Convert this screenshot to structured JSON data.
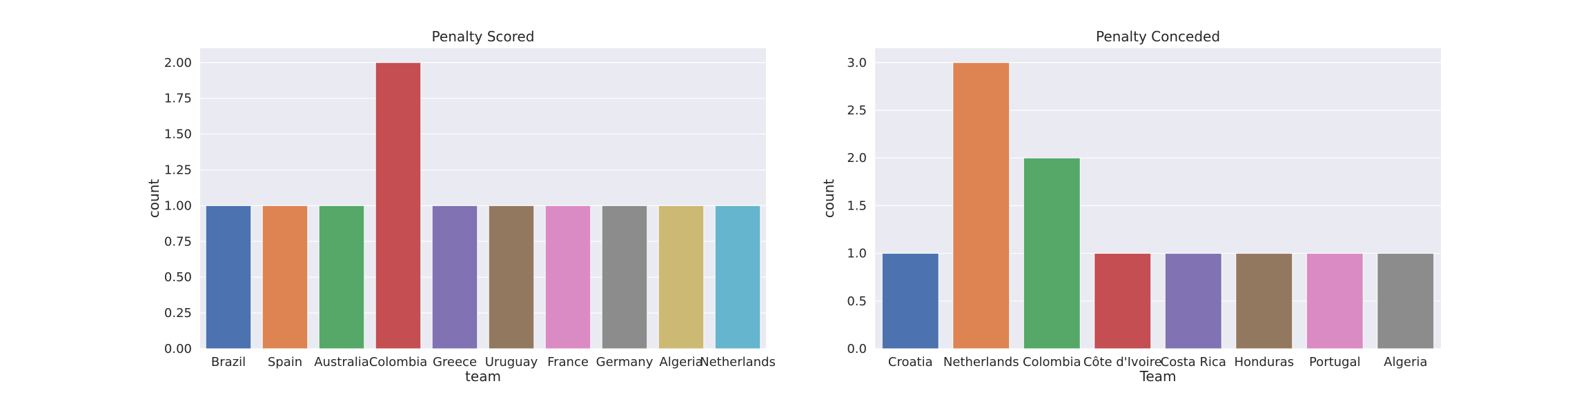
{
  "chart_data": [
    {
      "type": "bar",
      "title": "Penalty Scored",
      "xlabel": "team",
      "ylabel": "count",
      "categories": [
        "Brazil",
        "Spain",
        "Australia",
        "Colombia",
        "Greece",
        "Uruguay",
        "France",
        "Germany",
        "Algeria",
        "Netherlands"
      ],
      "values": [
        1,
        1,
        1,
        2,
        1,
        1,
        1,
        1,
        1,
        1
      ],
      "ylim": [
        0,
        2.1
      ],
      "yticks": [
        0,
        0.25,
        0.5,
        0.75,
        1.0,
        1.25,
        1.5,
        1.75,
        2.0
      ],
      "ytick_labels": [
        "0.00",
        "0.25",
        "0.50",
        "0.75",
        "1.00",
        "1.25",
        "1.50",
        "1.75",
        "2.00"
      ],
      "grid": true,
      "colors": [
        "#4c72b0",
        "#dd8452",
        "#55a868",
        "#c44e52",
        "#8172b3",
        "#937860",
        "#da8bc3",
        "#8c8c8c",
        "#ccb974",
        "#64b5cd"
      ]
    },
    {
      "type": "bar",
      "title": "Penalty Conceded",
      "xlabel": "Team",
      "ylabel": "count",
      "categories": [
        "Croatia",
        "Netherlands",
        "Colombia",
        "Côte d'Ivoire",
        "Costa Rica",
        "Honduras",
        "Portugal",
        "Algeria"
      ],
      "values": [
        1,
        3,
        2,
        1,
        1,
        1,
        1,
        1
      ],
      "ylim": [
        0,
        3.15
      ],
      "yticks": [
        0,
        0.5,
        1.0,
        1.5,
        2.0,
        2.5,
        3.0
      ],
      "ytick_labels": [
        "0.0",
        "0.5",
        "1.0",
        "1.5",
        "2.0",
        "2.5",
        "3.0"
      ],
      "grid": true,
      "colors": [
        "#4c72b0",
        "#dd8452",
        "#55a868",
        "#c44e52",
        "#8172b3",
        "#937860",
        "#da8bc3",
        "#8c8c8c"
      ]
    }
  ]
}
